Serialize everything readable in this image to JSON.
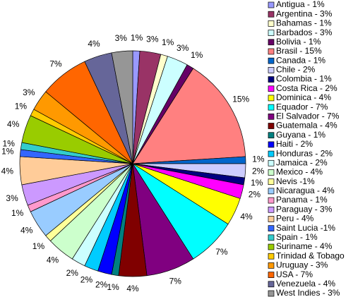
{
  "chart_data": {
    "type": "pie",
    "categories": [
      "Antigua - 1%",
      "Argentina - 3%",
      "Bahamas - 1%",
      "Barbados - 3%",
      "Bolivia - 1%",
      "Brasil - 15%",
      "Canada - 1%",
      "Chile - 2%",
      "Colombia - 1%",
      "Costa Rica - 2%",
      "Dominica - 4%",
      "Equador - 7%",
      "El Salvador - 7%",
      "Guatemala - 4%",
      "Guyana - 1%",
      "Haiti - 2%",
      "Honduras - 2%",
      "Jamaica - 2%",
      "Mexico - 4%",
      "Nevis -1%",
      "Nicaragua - 4%",
      "Panama - 1%",
      "Paraguay - 3%",
      "Peru - 4%",
      "Saint Lucia -1%",
      "Spain - 1%",
      "Suriname - 4%",
      "Trinidad & Tobago",
      "Uruguay - 3%",
      "USA - 7%",
      "Venezuela - 4%",
      "West Indies - 3%"
    ],
    "values": [
      1,
      3,
      1,
      3,
      1,
      15,
      1,
      2,
      1,
      2,
      4,
      7,
      7,
      4,
      1,
      2,
      2,
      2,
      4,
      1,
      4,
      1,
      3,
      4,
      1,
      1,
      4,
      1,
      3,
      7,
      4,
      3
    ],
    "value_labels": [
      "1%",
      "3%",
      "1%",
      "3%",
      "1%",
      "15%",
      "1%",
      "2%",
      "1%",
      "2%",
      "4%",
      "7%",
      "7%",
      "4%",
      "1%",
      "2%",
      "2%",
      "2%",
      "4%",
      "1%",
      "4%",
      "1%",
      "3%",
      "4%",
      "1%",
      "1%",
      "4%",
      "1%",
      "3%",
      "7%",
      "4%",
      "3%"
    ],
    "colors": [
      "#9999ff",
      "#993366",
      "#ffffcc",
      "#ccffff",
      "#660066",
      "#ff8080",
      "#0066cc",
      "#ccccff",
      "#000080",
      "#ff00ff",
      "#ffff00",
      "#00ffff",
      "#800080",
      "#800000",
      "#008080",
      "#0000ff",
      "#00ccff",
      "#ccffff",
      "#ccffcc",
      "#ffff99",
      "#99ccff",
      "#ff99cc",
      "#cc99ff",
      "#ffcc99",
      "#3366ff",
      "#33cccc",
      "#99cc00",
      "#ffcc00",
      "#ff9900",
      "#ff6600",
      "#666699",
      "#969696"
    ],
    "legend": "right"
  }
}
